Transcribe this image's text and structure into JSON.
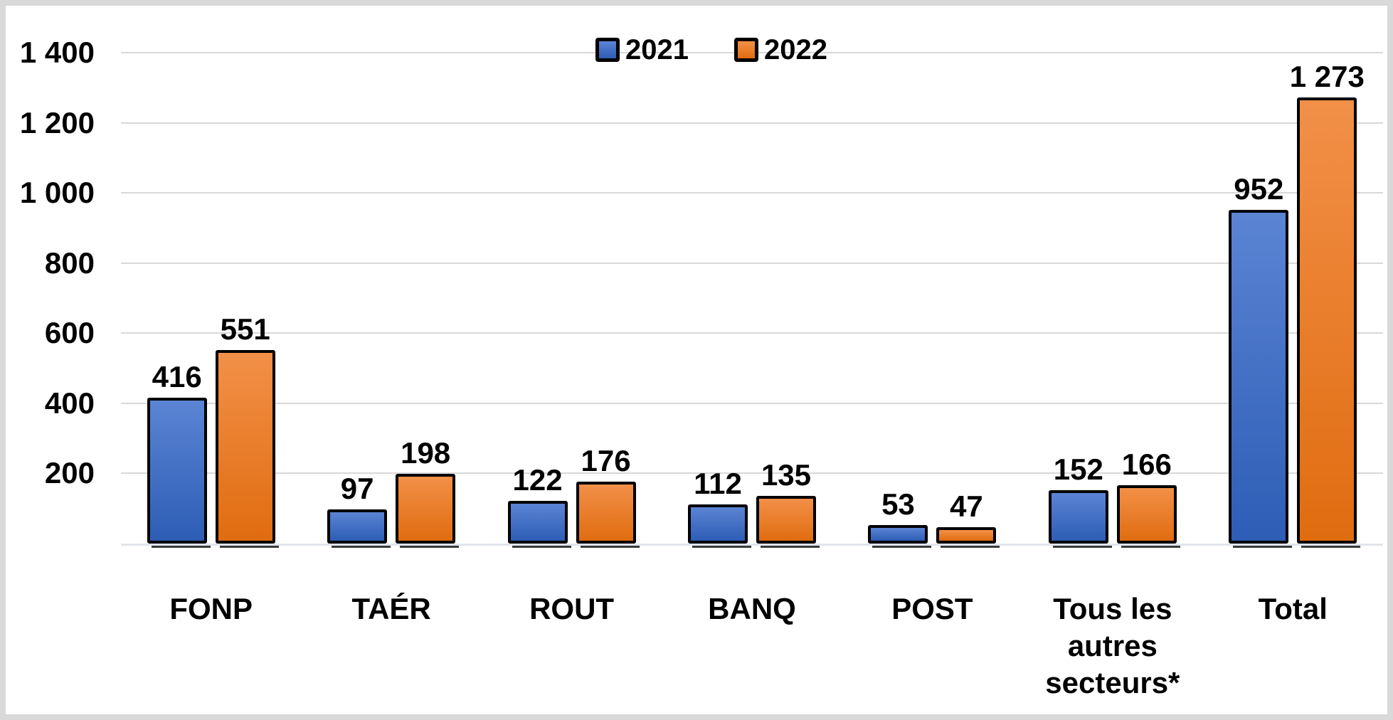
{
  "chart": {
    "legend": {
      "position": "top-center",
      "items": [
        {
          "label": "2021",
          "swatch_color": "#4472C4"
        },
        {
          "label": "2022",
          "swatch_color": "#ED7D31"
        }
      ]
    },
    "y_axis": {
      "ticks": [
        {
          "value": 200,
          "label": "200"
        },
        {
          "value": 400,
          "label": "400"
        },
        {
          "value": 600,
          "label": "600"
        },
        {
          "value": 800,
          "label": "800"
        },
        {
          "value": 1000,
          "label": "1 000"
        },
        {
          "value": 1200,
          "label": "1 200"
        },
        {
          "value": 1400,
          "label": "1 400"
        }
      ]
    },
    "colors": {
      "series_2021": "#4472C4",
      "series_2021_gradient_top": "#5B84D4",
      "series_2021_gradient_bottom": "#2D5DB5",
      "series_2022": "#ED7D31",
      "series_2022_gradient_top": "#F29048",
      "series_2022_gradient_bottom": "#E06C10",
      "bar_border": "#000000",
      "gridline": "#D8D8D8",
      "frame": "#D9D9D9",
      "text": "#000000"
    }
  },
  "chart_data": {
    "type": "bar",
    "title": "",
    "xlabel": "",
    "ylabel": "",
    "categories": [
      "FONP",
      "TAÉR",
      "ROUT",
      "BANQ",
      "POST",
      "Tous les autres secteurs*",
      "Total"
    ],
    "series": [
      {
        "name": "2021",
        "color": "#4472C4",
        "values": [
          416,
          97,
          122,
          112,
          53,
          152,
          952
        ],
        "labels": [
          "416",
          "97",
          "122",
          "112",
          "53",
          "152",
          "952"
        ]
      },
      {
        "name": "2022",
        "color": "#ED7D31",
        "values": [
          551,
          198,
          176,
          135,
          47,
          166,
          1273
        ],
        "labels": [
          "551",
          "198",
          "176",
          "135",
          "47",
          "166",
          "1 273"
        ]
      }
    ],
    "ylim": [
      0,
      1400
    ],
    "y_tick_step": 200,
    "grid": true,
    "legend_position": "top"
  }
}
